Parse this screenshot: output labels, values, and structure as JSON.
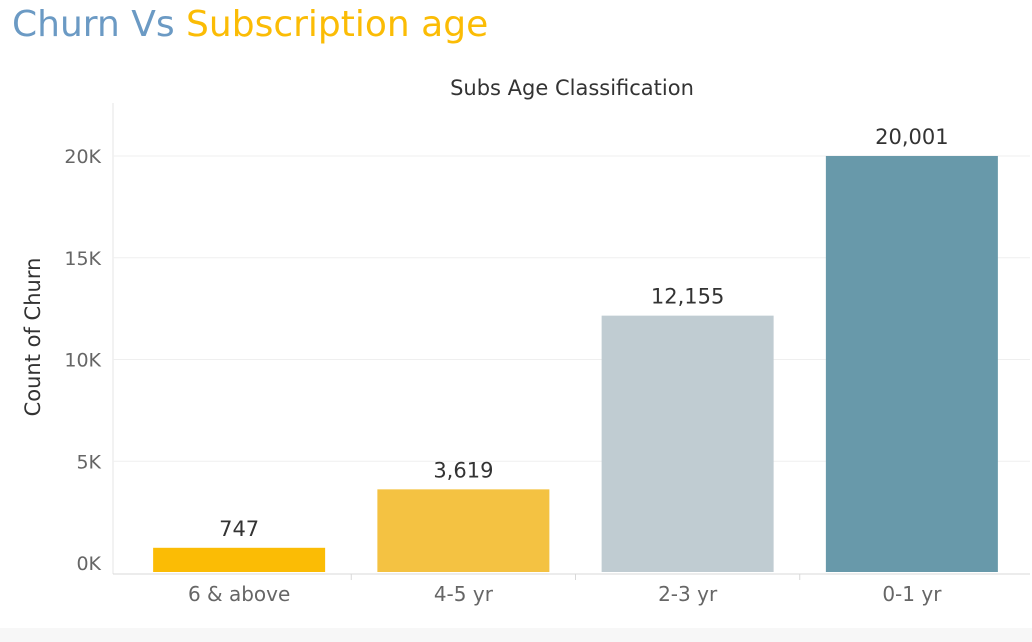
{
  "title": {
    "part1": "Churn Vs",
    "part2": "Subscription age",
    "colors": {
      "part1": "#6b9ac4",
      "part2": "#fbbc05"
    }
  },
  "chart_data": {
    "type": "bar",
    "column_header": "Subs Age Classification",
    "ylabel": "Count of Churn",
    "categories": [
      "6 & above",
      "4-5 yr",
      "2-3 yr",
      "0-1 yr"
    ],
    "values": [
      747,
      3619,
      12155,
      20001
    ],
    "value_labels": [
      "747",
      "3,619",
      "12,155",
      "20,001"
    ],
    "bar_colors": [
      "#fbbc05",
      "#f4c242",
      "#c0ccd2",
      "#6899aa"
    ],
    "yticks": [
      0,
      5000,
      10000,
      15000,
      20000
    ],
    "ytick_labels": [
      "0K",
      "5K",
      "10K",
      "15K",
      "20K"
    ],
    "ylim": [
      0,
      22500
    ],
    "grid": true
  }
}
